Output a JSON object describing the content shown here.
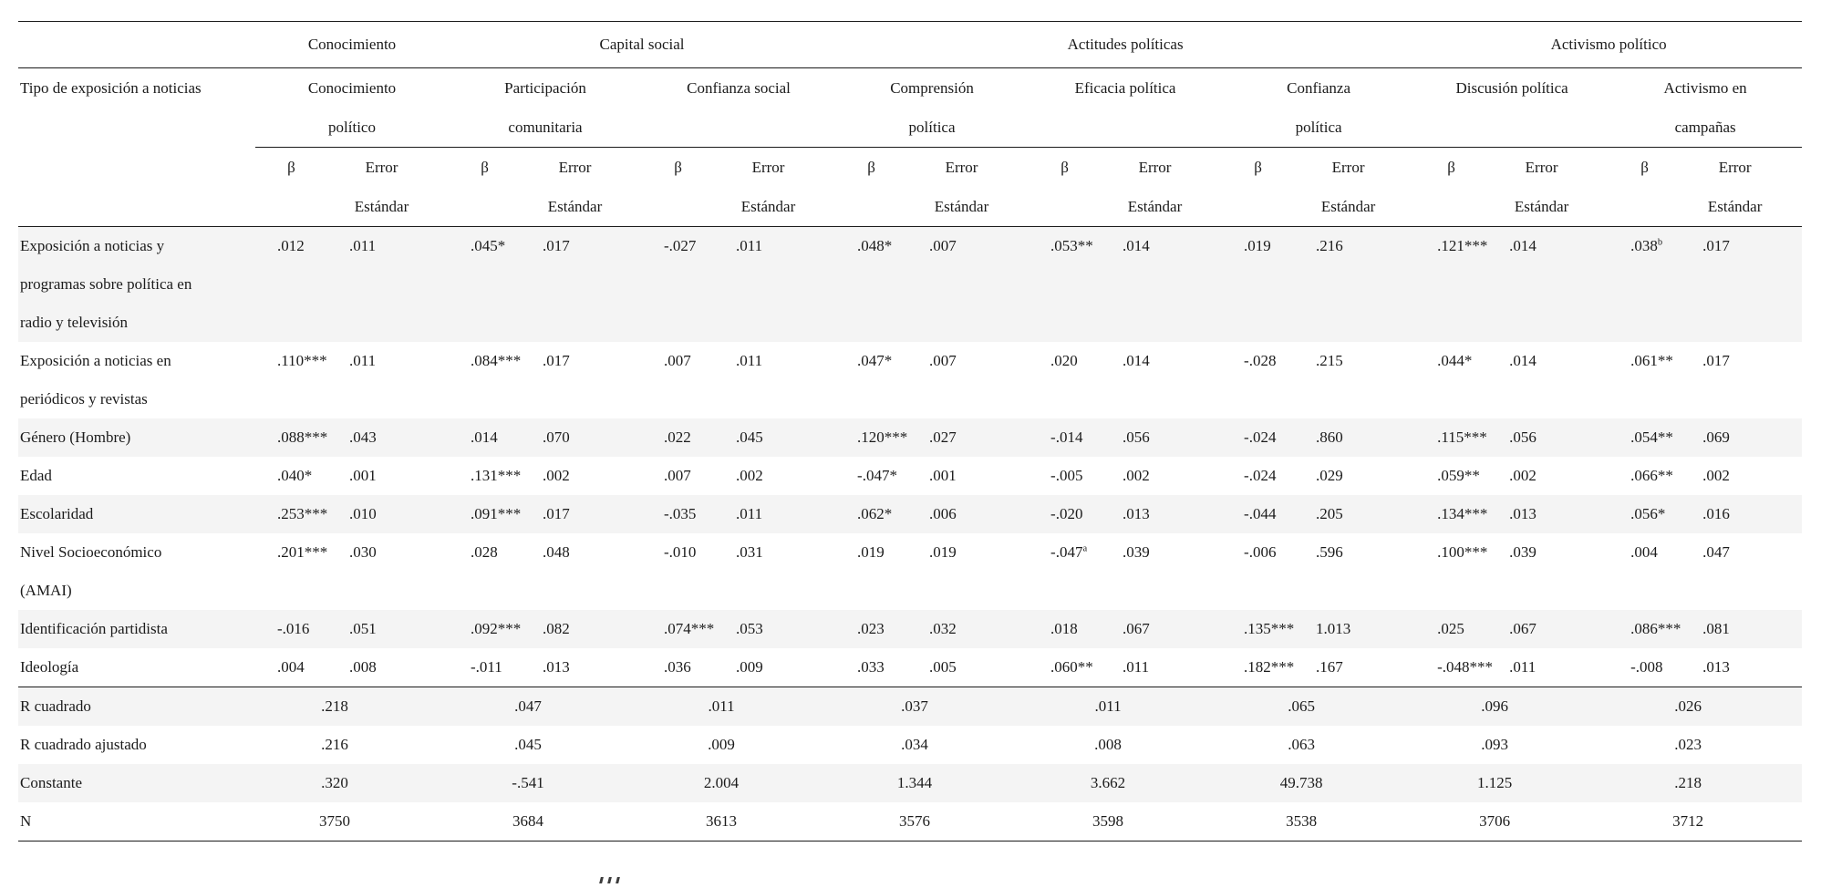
{
  "colors": {
    "stripe": "#f4f4f4",
    "rule": "#1b1b1b",
    "text": "#1b1b1b"
  },
  "table": {
    "type": "table",
    "row_header_title": "Tipo de exposición a noticias",
    "groups": [
      {
        "label": "Conocimiento",
        "span": 1
      },
      {
        "label": "Capital social",
        "span": 2
      },
      {
        "label": "Actitudes políticas",
        "span": 3
      },
      {
        "label": "Activismo político",
        "span": 2
      }
    ],
    "outcomes": [
      {
        "lines": [
          "Conocimiento",
          "político"
        ]
      },
      {
        "lines": [
          "Participación",
          "comunitaria"
        ]
      },
      {
        "lines": [
          "Confianza social",
          ""
        ]
      },
      {
        "lines": [
          "Comprensión",
          "política"
        ]
      },
      {
        "lines": [
          "Eficacia política",
          ""
        ]
      },
      {
        "lines": [
          "Confianza",
          "política"
        ]
      },
      {
        "lines": [
          "Discusión política",
          ""
        ]
      },
      {
        "lines": [
          "Activismo en",
          "campañas"
        ]
      }
    ],
    "stat_headers": {
      "beta": "β",
      "error_lines": [
        "Error",
        "Estándar"
      ]
    },
    "rows": [
      {
        "label_lines": [
          "Exposición a noticias y",
          "programas sobre política en",
          "radio y televisión"
        ],
        "values": [
          ".012",
          ".011",
          ".045*",
          ".017",
          "-.027",
          ".011",
          ".048*",
          ".007",
          ".053**",
          ".014",
          ".019",
          ".216",
          ".121***",
          ".014",
          ".038^b",
          ".017"
        ]
      },
      {
        "label_lines": [
          "Exposición a noticias en",
          "periódicos y revistas"
        ],
        "values": [
          ".110***",
          ".011",
          ".084***",
          ".017",
          ".007",
          ".011",
          ".047*",
          ".007",
          ".020",
          ".014",
          "-.028",
          ".215",
          ".044*",
          ".014",
          ".061**",
          ".017"
        ]
      },
      {
        "label_lines": [
          "Género (Hombre)"
        ],
        "values": [
          ".088***",
          ".043",
          ".014",
          ".070",
          ".022",
          ".045",
          ".120***",
          ".027",
          "-.014",
          ".056",
          "-.024",
          ".860",
          ".115***",
          ".056",
          ".054**",
          ".069"
        ]
      },
      {
        "label_lines": [
          "Edad"
        ],
        "values": [
          ".040*",
          ".001",
          ".131***",
          ".002",
          ".007",
          ".002",
          "-.047*",
          ".001",
          "-.005",
          ".002",
          "-.024",
          ".029",
          ".059**",
          ".002",
          ".066**",
          ".002"
        ]
      },
      {
        "label_lines": [
          "Escolaridad"
        ],
        "values": [
          ".253***",
          ".010",
          ".091***",
          ".017",
          "-.035",
          ".011",
          ".062*",
          ".006",
          "-.020",
          ".013",
          "-.044",
          ".205",
          ".134***",
          ".013",
          ".056*",
          ".016"
        ]
      },
      {
        "label_lines": [
          "Nivel Socioeconómico",
          "(AMAI)"
        ],
        "values": [
          ".201***",
          ".030",
          ".028",
          ".048",
          "-.010",
          ".031",
          ".019",
          ".019",
          "-.047^a",
          ".039",
          "-.006",
          ".596",
          ".100***",
          ".039",
          ".004",
          ".047"
        ]
      },
      {
        "label_lines": [
          "Identificación partidista"
        ],
        "values": [
          "-.016",
          ".051",
          ".092***",
          ".082",
          ".074***",
          ".053",
          ".023",
          ".032",
          ".018",
          ".067",
          ".135***",
          "1.013",
          ".025",
          ".067",
          ".086***",
          ".081"
        ]
      },
      {
        "label_lines": [
          "Ideología"
        ],
        "values": [
          ".004",
          ".008",
          "-.011",
          ".013",
          ".036",
          ".009",
          ".033",
          ".005",
          ".060**",
          ".011",
          ".182***",
          ".167",
          "-.048***",
          ".011",
          "-.008",
          ".013"
        ]
      }
    ],
    "summary_rows": [
      {
        "label": "R cuadrado",
        "values": [
          ".218",
          ".047",
          ".011",
          ".037",
          ".011",
          ".065",
          ".096",
          ".026"
        ]
      },
      {
        "label": "R cuadrado ajustado",
        "values": [
          ".216",
          ".045",
          ".009",
          ".034",
          ".008",
          ".063",
          ".093",
          ".023"
        ]
      },
      {
        "label": "Constante",
        "values": [
          ".320",
          "-.541",
          "2.004",
          "1.344",
          "3.662",
          "49.738",
          "1.125",
          ".218"
        ]
      },
      {
        "label": "N",
        "values": [
          "3750",
          "3684",
          "3613",
          "3576",
          "3598",
          "3538",
          "3706",
          "3712"
        ]
      }
    ]
  }
}
